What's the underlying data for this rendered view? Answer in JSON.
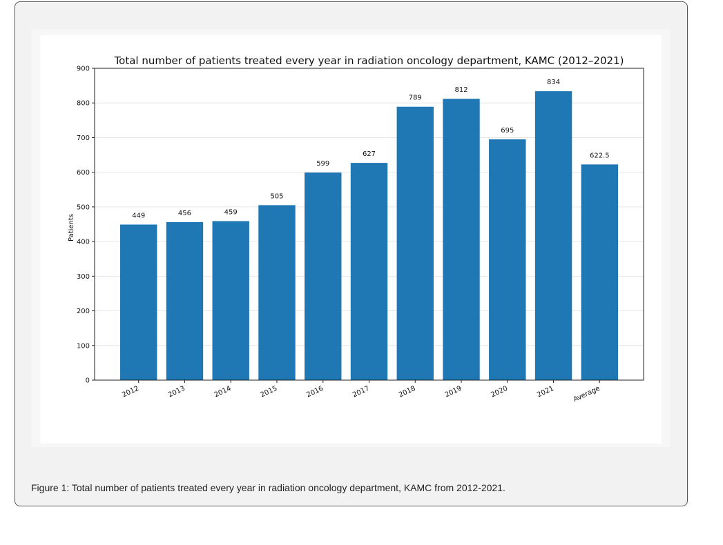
{
  "figure": {
    "caption": "Figure 1: Total number of patients treated every year in radiation oncology department, KAMC from 2012-2021."
  },
  "chart_data": {
    "type": "bar",
    "title": "Total number of patients treated every year in radiation oncology department, KAMC (2012–2021)",
    "xlabel": "",
    "ylabel": "Patients",
    "categories": [
      "2012",
      "2013",
      "2014",
      "2015",
      "2016",
      "2017",
      "2018",
      "2019",
      "2020",
      "2021",
      "Average"
    ],
    "values": [
      449,
      456,
      459,
      505,
      599,
      627,
      789,
      812,
      695,
      834,
      622.5
    ],
    "value_labels": [
      "449",
      "456",
      "459",
      "505",
      "599",
      "627",
      "789",
      "812",
      "695",
      "834",
      "622.5"
    ],
    "ylim": [
      0,
      900
    ],
    "yticks": [
      "0",
      "100",
      "200",
      "300",
      "400",
      "500",
      "600",
      "700",
      "800",
      "900"
    ],
    "grid": true,
    "bar_color": "#1f77b4",
    "x_tick_rotation": "rotated ~30 degrees"
  }
}
